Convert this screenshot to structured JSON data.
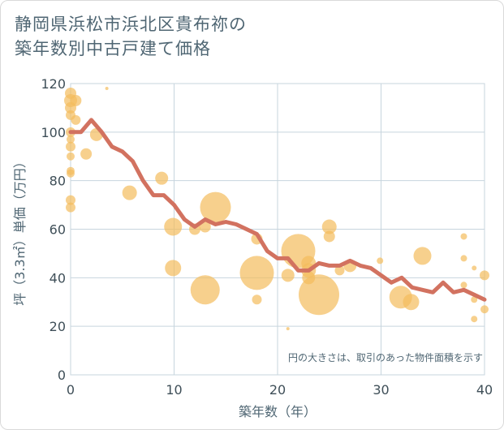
{
  "title_lines": [
    "静岡県浜松市浜北区貴布祢の",
    "築年数別中古戸建て価格"
  ],
  "colors": {
    "line": "#d27260",
    "bubble": "#f3bc5c",
    "grid": "#c7d5de",
    "text": "#4f6673"
  },
  "chart_data": {
    "type": "scatter",
    "xlabel": "築年数（年）",
    "ylabel": "坪（3.3㎡）単価（万円）",
    "note": "円の大きさは、取引のあった物件面積を示す",
    "xlim": [
      0,
      40
    ],
    "ylim": [
      0,
      120
    ],
    "x_ticks": [
      0,
      10,
      20,
      30,
      40
    ],
    "y_ticks": [
      0,
      20,
      40,
      60,
      80,
      100,
      120
    ],
    "grid": true,
    "bubble_series": {
      "points": [
        {
          "x": 0,
          "y": 116,
          "r": 7
        },
        {
          "x": 0,
          "y": 113,
          "r": 8
        },
        {
          "x": 0,
          "y": 110,
          "r": 7
        },
        {
          "x": 0,
          "y": 107,
          "r": 6
        },
        {
          "x": 0,
          "y": 100,
          "r": 6
        },
        {
          "x": 0,
          "y": 97,
          "r": 5
        },
        {
          "x": 0,
          "y": 94,
          "r": 6
        },
        {
          "x": 0,
          "y": 90,
          "r": 5
        },
        {
          "x": 0,
          "y": 84,
          "r": 5
        },
        {
          "x": 0,
          "y": 83,
          "r": 5
        },
        {
          "x": 0,
          "y": 72,
          "r": 6
        },
        {
          "x": 0,
          "y": 69,
          "r": 6
        },
        {
          "x": 0.5,
          "y": 113,
          "r": 7
        },
        {
          "x": 0.5,
          "y": 105,
          "r": 6
        },
        {
          "x": 1.5,
          "y": 91,
          "r": 7
        },
        {
          "x": 2.5,
          "y": 99,
          "r": 8
        },
        {
          "x": 3.5,
          "y": 118,
          "r": 2
        },
        {
          "x": 5.7,
          "y": 75,
          "r": 9
        },
        {
          "x": 8.8,
          "y": 81,
          "r": 8
        },
        {
          "x": 9.9,
          "y": 61,
          "r": 11
        },
        {
          "x": 9.9,
          "y": 44,
          "r": 10
        },
        {
          "x": 12,
          "y": 60,
          "r": 7
        },
        {
          "x": 13,
          "y": 61,
          "r": 7
        },
        {
          "x": 13,
          "y": 35,
          "r": 18
        },
        {
          "x": 14,
          "y": 69,
          "r": 19
        },
        {
          "x": 18,
          "y": 56,
          "r": 7
        },
        {
          "x": 18,
          "y": 42,
          "r": 21
        },
        {
          "x": 18,
          "y": 31,
          "r": 6
        },
        {
          "x": 21,
          "y": 19,
          "r": 2
        },
        {
          "x": 21,
          "y": 41,
          "r": 8
        },
        {
          "x": 22,
          "y": 51,
          "r": 21
        },
        {
          "x": 23,
          "y": 46,
          "r": 9
        },
        {
          "x": 23,
          "y": 43,
          "r": 9
        },
        {
          "x": 23,
          "y": 40,
          "r": 8
        },
        {
          "x": 24,
          "y": 33,
          "r": 25
        },
        {
          "x": 25,
          "y": 61,
          "r": 9
        },
        {
          "x": 25,
          "y": 57,
          "r": 7
        },
        {
          "x": 26,
          "y": 43,
          "r": 6
        },
        {
          "x": 27,
          "y": 45,
          "r": 8
        },
        {
          "x": 29.9,
          "y": 47,
          "r": 4
        },
        {
          "x": 31.9,
          "y": 32,
          "r": 14
        },
        {
          "x": 32.9,
          "y": 30,
          "r": 10
        },
        {
          "x": 34,
          "y": 49,
          "r": 11
        },
        {
          "x": 38,
          "y": 57,
          "r": 4
        },
        {
          "x": 38,
          "y": 48,
          "r": 4
        },
        {
          "x": 38,
          "y": 37,
          "r": 4
        },
        {
          "x": 39,
          "y": 44,
          "r": 3
        },
        {
          "x": 39,
          "y": 31,
          "r": 4
        },
        {
          "x": 39,
          "y": 23,
          "r": 4
        },
        {
          "x": 40,
          "y": 41,
          "r": 6
        },
        {
          "x": 40,
          "y": 27,
          "r": 5
        }
      ]
    },
    "line_series": {
      "x": [
        0,
        1,
        2,
        3,
        4,
        5,
        6,
        7,
        8,
        9,
        10,
        11,
        12,
        13,
        14,
        15,
        16,
        17,
        18,
        19,
        20,
        21,
        22,
        23,
        24,
        25,
        26,
        27,
        28,
        29,
        30,
        31,
        32,
        33,
        34,
        35,
        36,
        37,
        38,
        39,
        40
      ],
      "y": [
        100,
        100,
        105,
        100,
        94,
        92,
        88,
        80,
        74,
        74,
        70,
        64,
        61,
        64,
        62,
        63,
        62,
        60,
        58,
        51,
        48,
        48,
        43,
        43,
        46,
        45,
        45,
        47,
        45,
        44,
        41,
        38,
        40,
        36,
        35,
        34,
        38,
        34,
        35,
        33,
        31
      ]
    }
  }
}
